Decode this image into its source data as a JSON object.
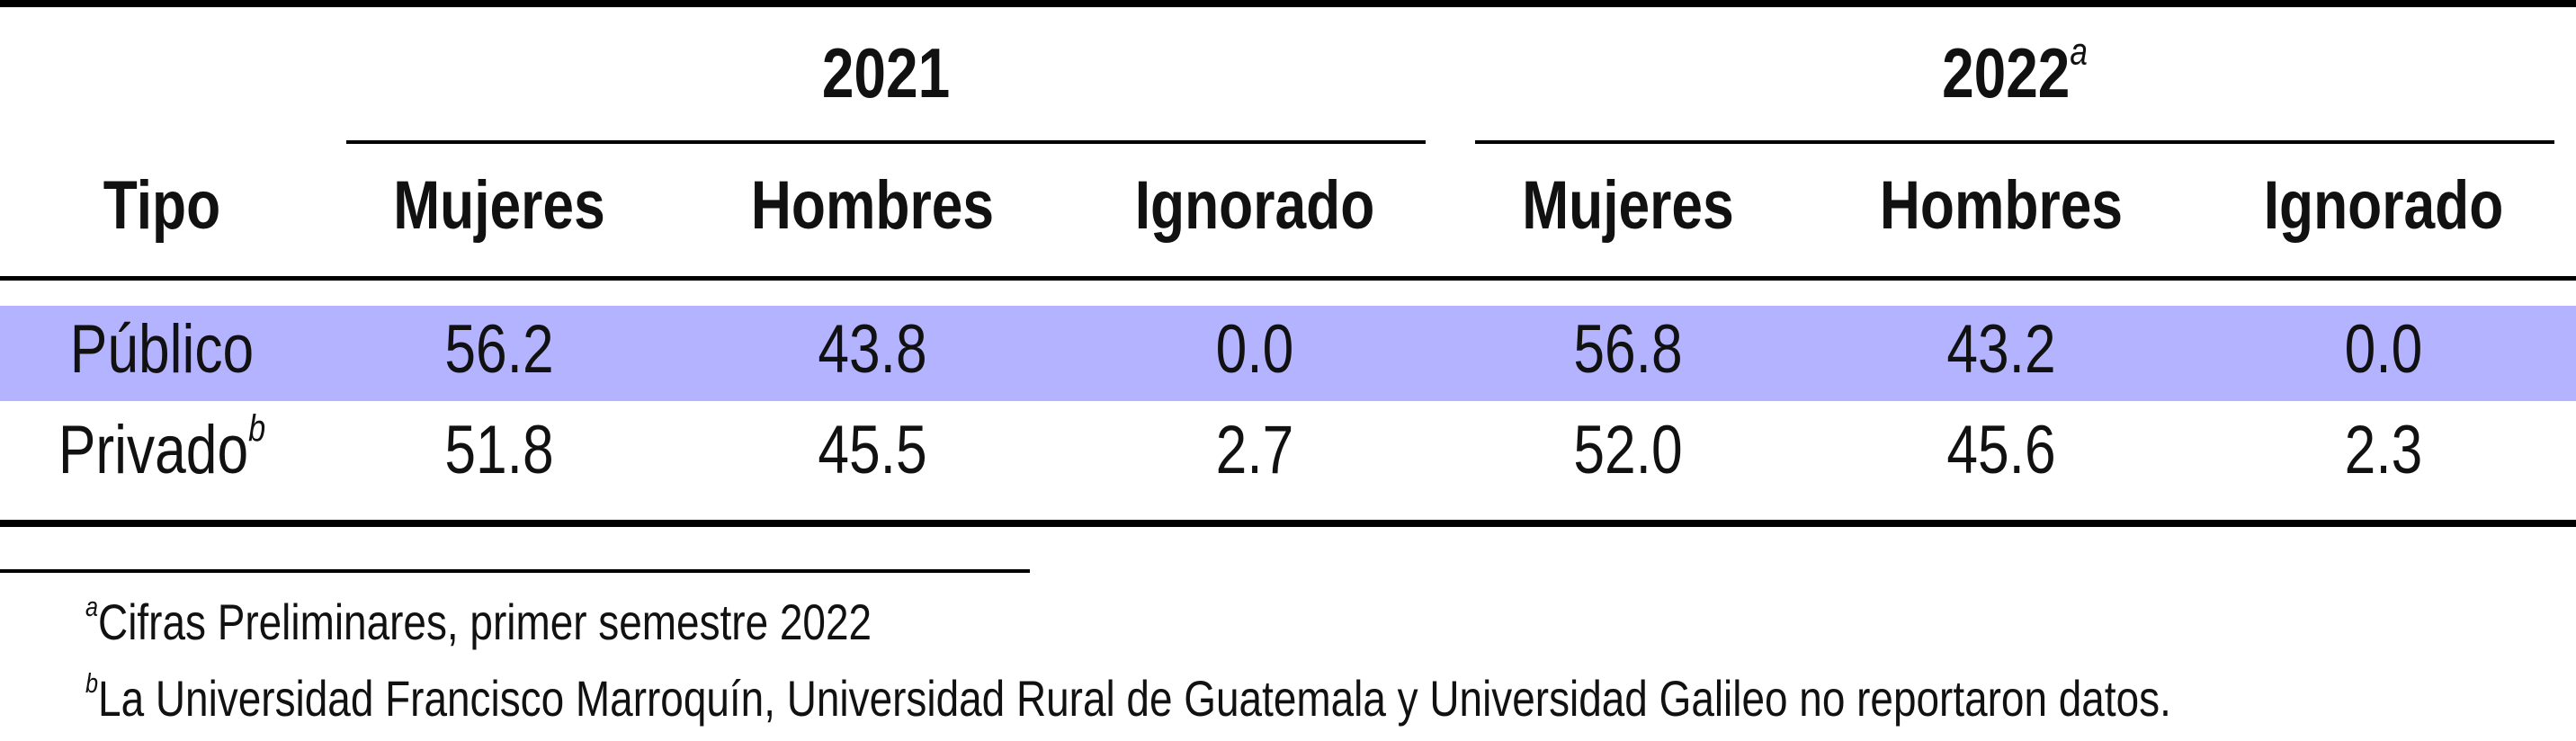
{
  "colors": {
    "highlight_row": "#b3b3ff",
    "rules": "#000000",
    "text": "#111111"
  },
  "table": {
    "groups": [
      {
        "label": "2021",
        "mark": ""
      },
      {
        "label": "2022",
        "mark": "a"
      }
    ],
    "type_header": "Tipo",
    "columns": [
      "Mujeres",
      "Hombres",
      "Ignorado",
      "Mujeres",
      "Hombres",
      "Ignorado"
    ],
    "rows": [
      {
        "label": "Público",
        "mark": "",
        "values": [
          "56.2",
          "43.8",
          "0.0",
          "56.8",
          "43.2",
          "0.0"
        ]
      },
      {
        "label": "Privado",
        "mark": "b",
        "values": [
          "51.8",
          "45.5",
          "2.7",
          "52.0",
          "45.6",
          "2.3"
        ]
      }
    ]
  },
  "notes": [
    {
      "mark": "a",
      "text": "Cifras Preliminares, primer semestre 2022"
    },
    {
      "mark": "b",
      "text": "La Universidad Francisco Marroquín, Universidad Rural de Guatemala y Universidad Galileo no reportaron datos."
    }
  ]
}
